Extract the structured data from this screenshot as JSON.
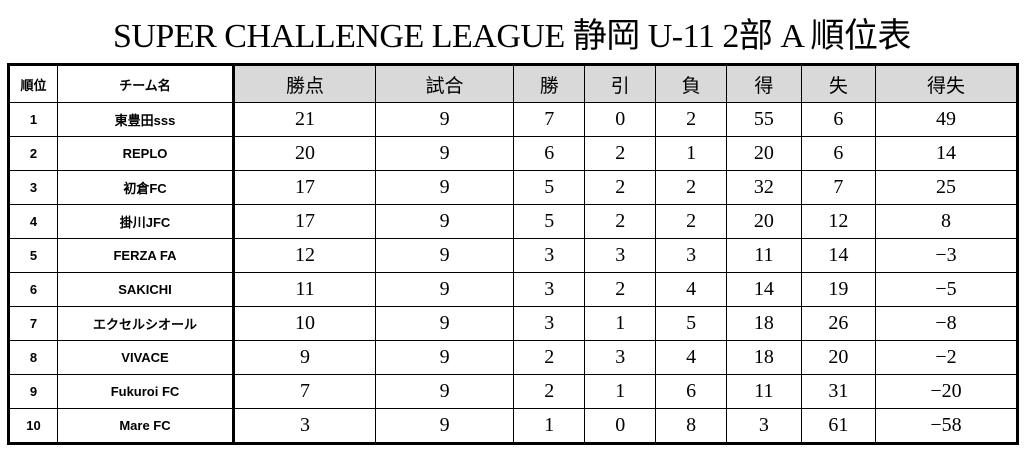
{
  "title": "SUPER CHALLENGE LEAGUE  静岡 U-11 2部  A  順位表",
  "headers": [
    "順位",
    "チーム名",
    "勝点",
    "試合",
    "勝",
    "引",
    "負",
    "得",
    "失",
    "得失"
  ],
  "rows": [
    [
      "1",
      "東豊田sss",
      "21",
      "9",
      "7",
      "0",
      "2",
      "55",
      "6",
      "49"
    ],
    [
      "2",
      "REPLO",
      "20",
      "9",
      "6",
      "2",
      "1",
      "20",
      "6",
      "14"
    ],
    [
      "3",
      "初倉FC",
      "17",
      "9",
      "5",
      "2",
      "2",
      "32",
      "7",
      "25"
    ],
    [
      "4",
      "掛川JFC",
      "17",
      "9",
      "5",
      "2",
      "2",
      "20",
      "12",
      "8"
    ],
    [
      "5",
      "FERZA FA",
      "12",
      "9",
      "3",
      "3",
      "3",
      "11",
      "14",
      "−3"
    ],
    [
      "6",
      "SAKICHI",
      "11",
      "9",
      "3",
      "2",
      "4",
      "14",
      "19",
      "−5"
    ],
    [
      "7",
      "エクセルシオール",
      "10",
      "9",
      "3",
      "1",
      "5",
      "18",
      "26",
      "−8"
    ],
    [
      "8",
      "VIVACE",
      "9",
      "9",
      "2",
      "3",
      "4",
      "18",
      "20",
      "−2"
    ],
    [
      "9",
      "Fukuroi FC",
      "7",
      "9",
      "2",
      "1",
      "6",
      "11",
      "31",
      "−20"
    ],
    [
      "10",
      "Mare FC",
      "3",
      "9",
      "1",
      "0",
      "8",
      "3",
      "61",
      "−58"
    ]
  ],
  "colors": {
    "header_stat_bg": "#d9d9d9"
  }
}
